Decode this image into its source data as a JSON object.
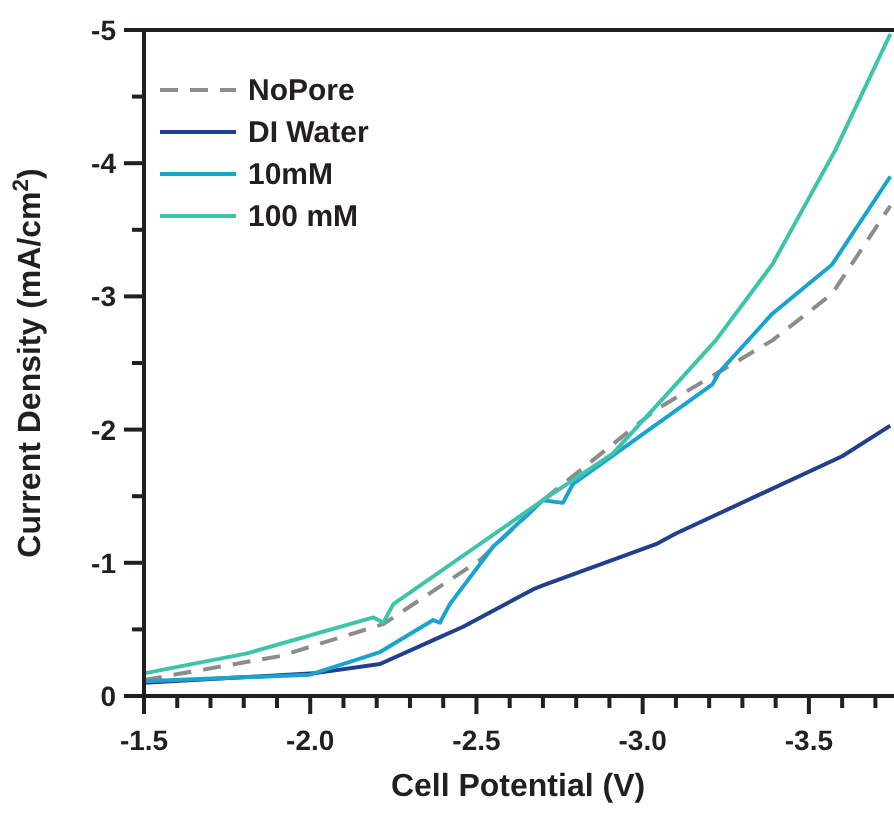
{
  "chart_data": {
    "type": "line",
    "xlabel": "Cell Potential (V)",
    "ylabel": "Current Density  (mA/cm$^{2}$)",
    "xlim": [
      -1.5,
      -3.75
    ],
    "ylim": [
      0,
      -5
    ],
    "xticks": [
      -1.5,
      {
        "value": -1.6,
        "label": null
      },
      {
        "value": -1.7,
        "label": null
      },
      {
        "value": -1.8,
        "label": null
      },
      {
        "value": -1.9,
        "label": null
      },
      {
        "value": -2.0,
        "label": "-2.0"
      },
      {
        "value": -2.1,
        "label": null
      },
      {
        "value": -2.2,
        "label": null
      },
      {
        "value": -2.3,
        "label": null
      },
      {
        "value": -2.4,
        "label": null
      },
      -2.5,
      {
        "value": -2.6,
        "label": null
      },
      {
        "value": -2.7,
        "label": null
      },
      {
        "value": -2.8,
        "label": null
      },
      {
        "value": -2.9,
        "label": null
      },
      {
        "value": -3.0,
        "label": "-3.0"
      },
      {
        "value": -3.1,
        "label": null
      },
      {
        "value": -3.2,
        "label": null
      },
      {
        "value": -3.3,
        "label": null
      },
      {
        "value": -3.4,
        "label": null
      },
      -3.5,
      {
        "value": -3.6,
        "label": null
      },
      {
        "value": -3.7,
        "label": null
      }
    ],
    "yticks": [
      0,
      {
        "value": -0.5,
        "label": null
      },
      -1,
      {
        "value": -1.5,
        "label": null
      },
      -2,
      {
        "value": -2.5,
        "label": null
      },
      -3,
      {
        "value": -3.5,
        "label": null
      },
      -4,
      {
        "value": -4.5,
        "label": null
      },
      -5
    ],
    "grid": false,
    "legend": "top left",
    "series": [
      {
        "name": "NoPore",
        "color": "#8c8c8c",
        "line_style": "dashed",
        "x": [
          -1.5,
          -1.91,
          -2.22,
          -2.51,
          -2.7,
          -3.04,
          -3.39,
          -3.57,
          -3.745
        ],
        "values": [
          -0.12,
          -0.3,
          -0.54,
          -1.02,
          -1.47,
          -2.15,
          -2.67,
          -3.02,
          -3.68
        ]
      },
      {
        "name": "DI Water",
        "color": "#213f8c",
        "x": [
          -1.5,
          -2.01,
          -2.21,
          -2.37,
          -2.46,
          -2.67,
          -2.7,
          -3.04,
          -3.1,
          -3.6,
          -3.745
        ],
        "values": [
          -0.1,
          -0.17,
          -0.24,
          -0.42,
          -0.52,
          -0.8,
          -0.83,
          -1.14,
          -1.22,
          -1.8,
          -2.03
        ]
      },
      {
        "name": "10mM",
        "color": "#1ba3d0",
        "x": [
          -1.5,
          -2.0,
          -2.21,
          -2.37,
          -2.39,
          -2.42,
          -2.55,
          -2.7,
          -2.76,
          -2.79,
          -3.21,
          -3.23,
          -3.39,
          -3.57,
          -3.745
        ],
        "values": [
          -0.11,
          -0.16,
          -0.33,
          -0.57,
          -0.55,
          -0.69,
          -1.12,
          -1.47,
          -1.45,
          -1.59,
          -2.34,
          -2.43,
          -2.87,
          -3.24,
          -3.9
        ]
      },
      {
        "name": "100 mM",
        "color": "#3dc4aa",
        "x": [
          -1.5,
          -1.81,
          -2.19,
          -2.22,
          -2.25,
          -2.7,
          -2.91,
          -3.1,
          -3.22,
          -3.39,
          -3.58,
          -3.745
        ],
        "values": [
          -0.17,
          -0.32,
          -0.59,
          -0.55,
          -0.69,
          -1.47,
          -1.82,
          -2.34,
          -2.67,
          -3.24,
          -4.1,
          -4.97
        ]
      }
    ]
  }
}
